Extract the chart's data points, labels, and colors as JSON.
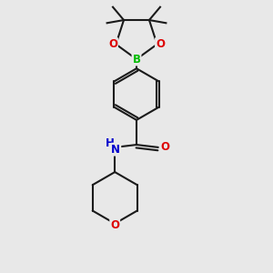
{
  "bg_color": "#e8e8e8",
  "bond_color": "#1a1a1a",
  "B_color": "#00bb00",
  "O_color": "#dd0000",
  "N_color": "#0000cc",
  "line_width": 1.5,
  "font_size": 8.5,
  "fig_size": [
    3.0,
    3.0
  ],
  "dpi": 100,
  "xlim": [
    -1.5,
    1.5
  ],
  "ylim": [
    -2.8,
    2.4
  ]
}
